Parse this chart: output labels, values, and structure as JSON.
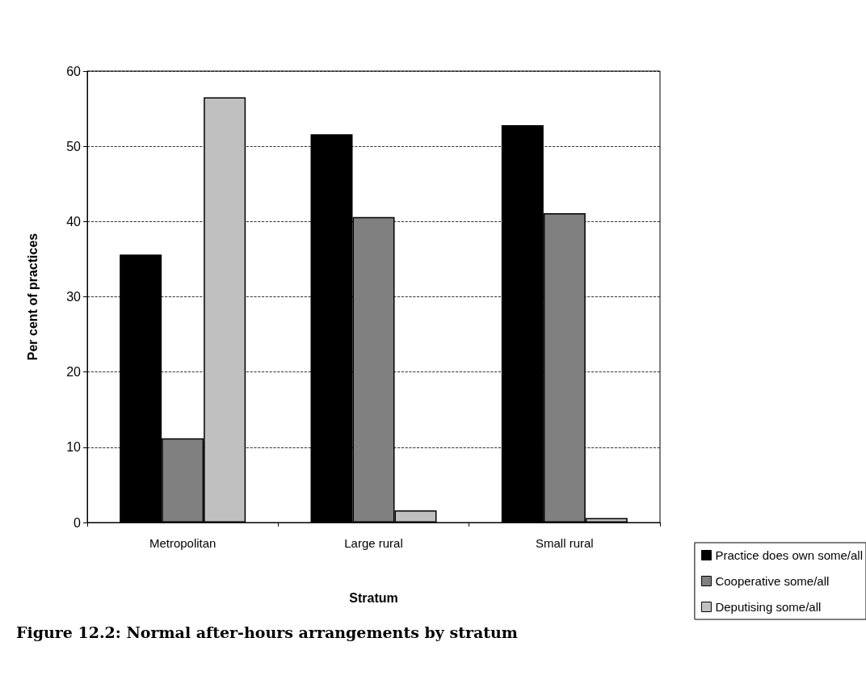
{
  "chart_data": {
    "type": "bar",
    "categories": [
      "Metropolitan",
      "Large rural",
      "Small rural"
    ],
    "series": [
      {
        "name": "Practice does own some/all",
        "color": "#000000",
        "values": [
          35.6,
          51.6,
          52.8
        ]
      },
      {
        "name": "Cooperative some/all",
        "color": "#808080",
        "values": [
          11.2,
          40.6,
          41.1
        ]
      },
      {
        "name": "Deputising some/all",
        "color": "#c0c0c0",
        "values": [
          56.5,
          1.6,
          0.6
        ]
      }
    ],
    "xlabel": "Stratum",
    "ylabel": "Per cent of practices",
    "ylim": [
      0,
      60
    ],
    "yticks": [
      0,
      10,
      20,
      30,
      40,
      50,
      60
    ],
    "grid": "y",
    "legend": "bottom right",
    "annotations": [
      "Figure 12.2: Normal after-hours arrangements by stratum"
    ]
  }
}
